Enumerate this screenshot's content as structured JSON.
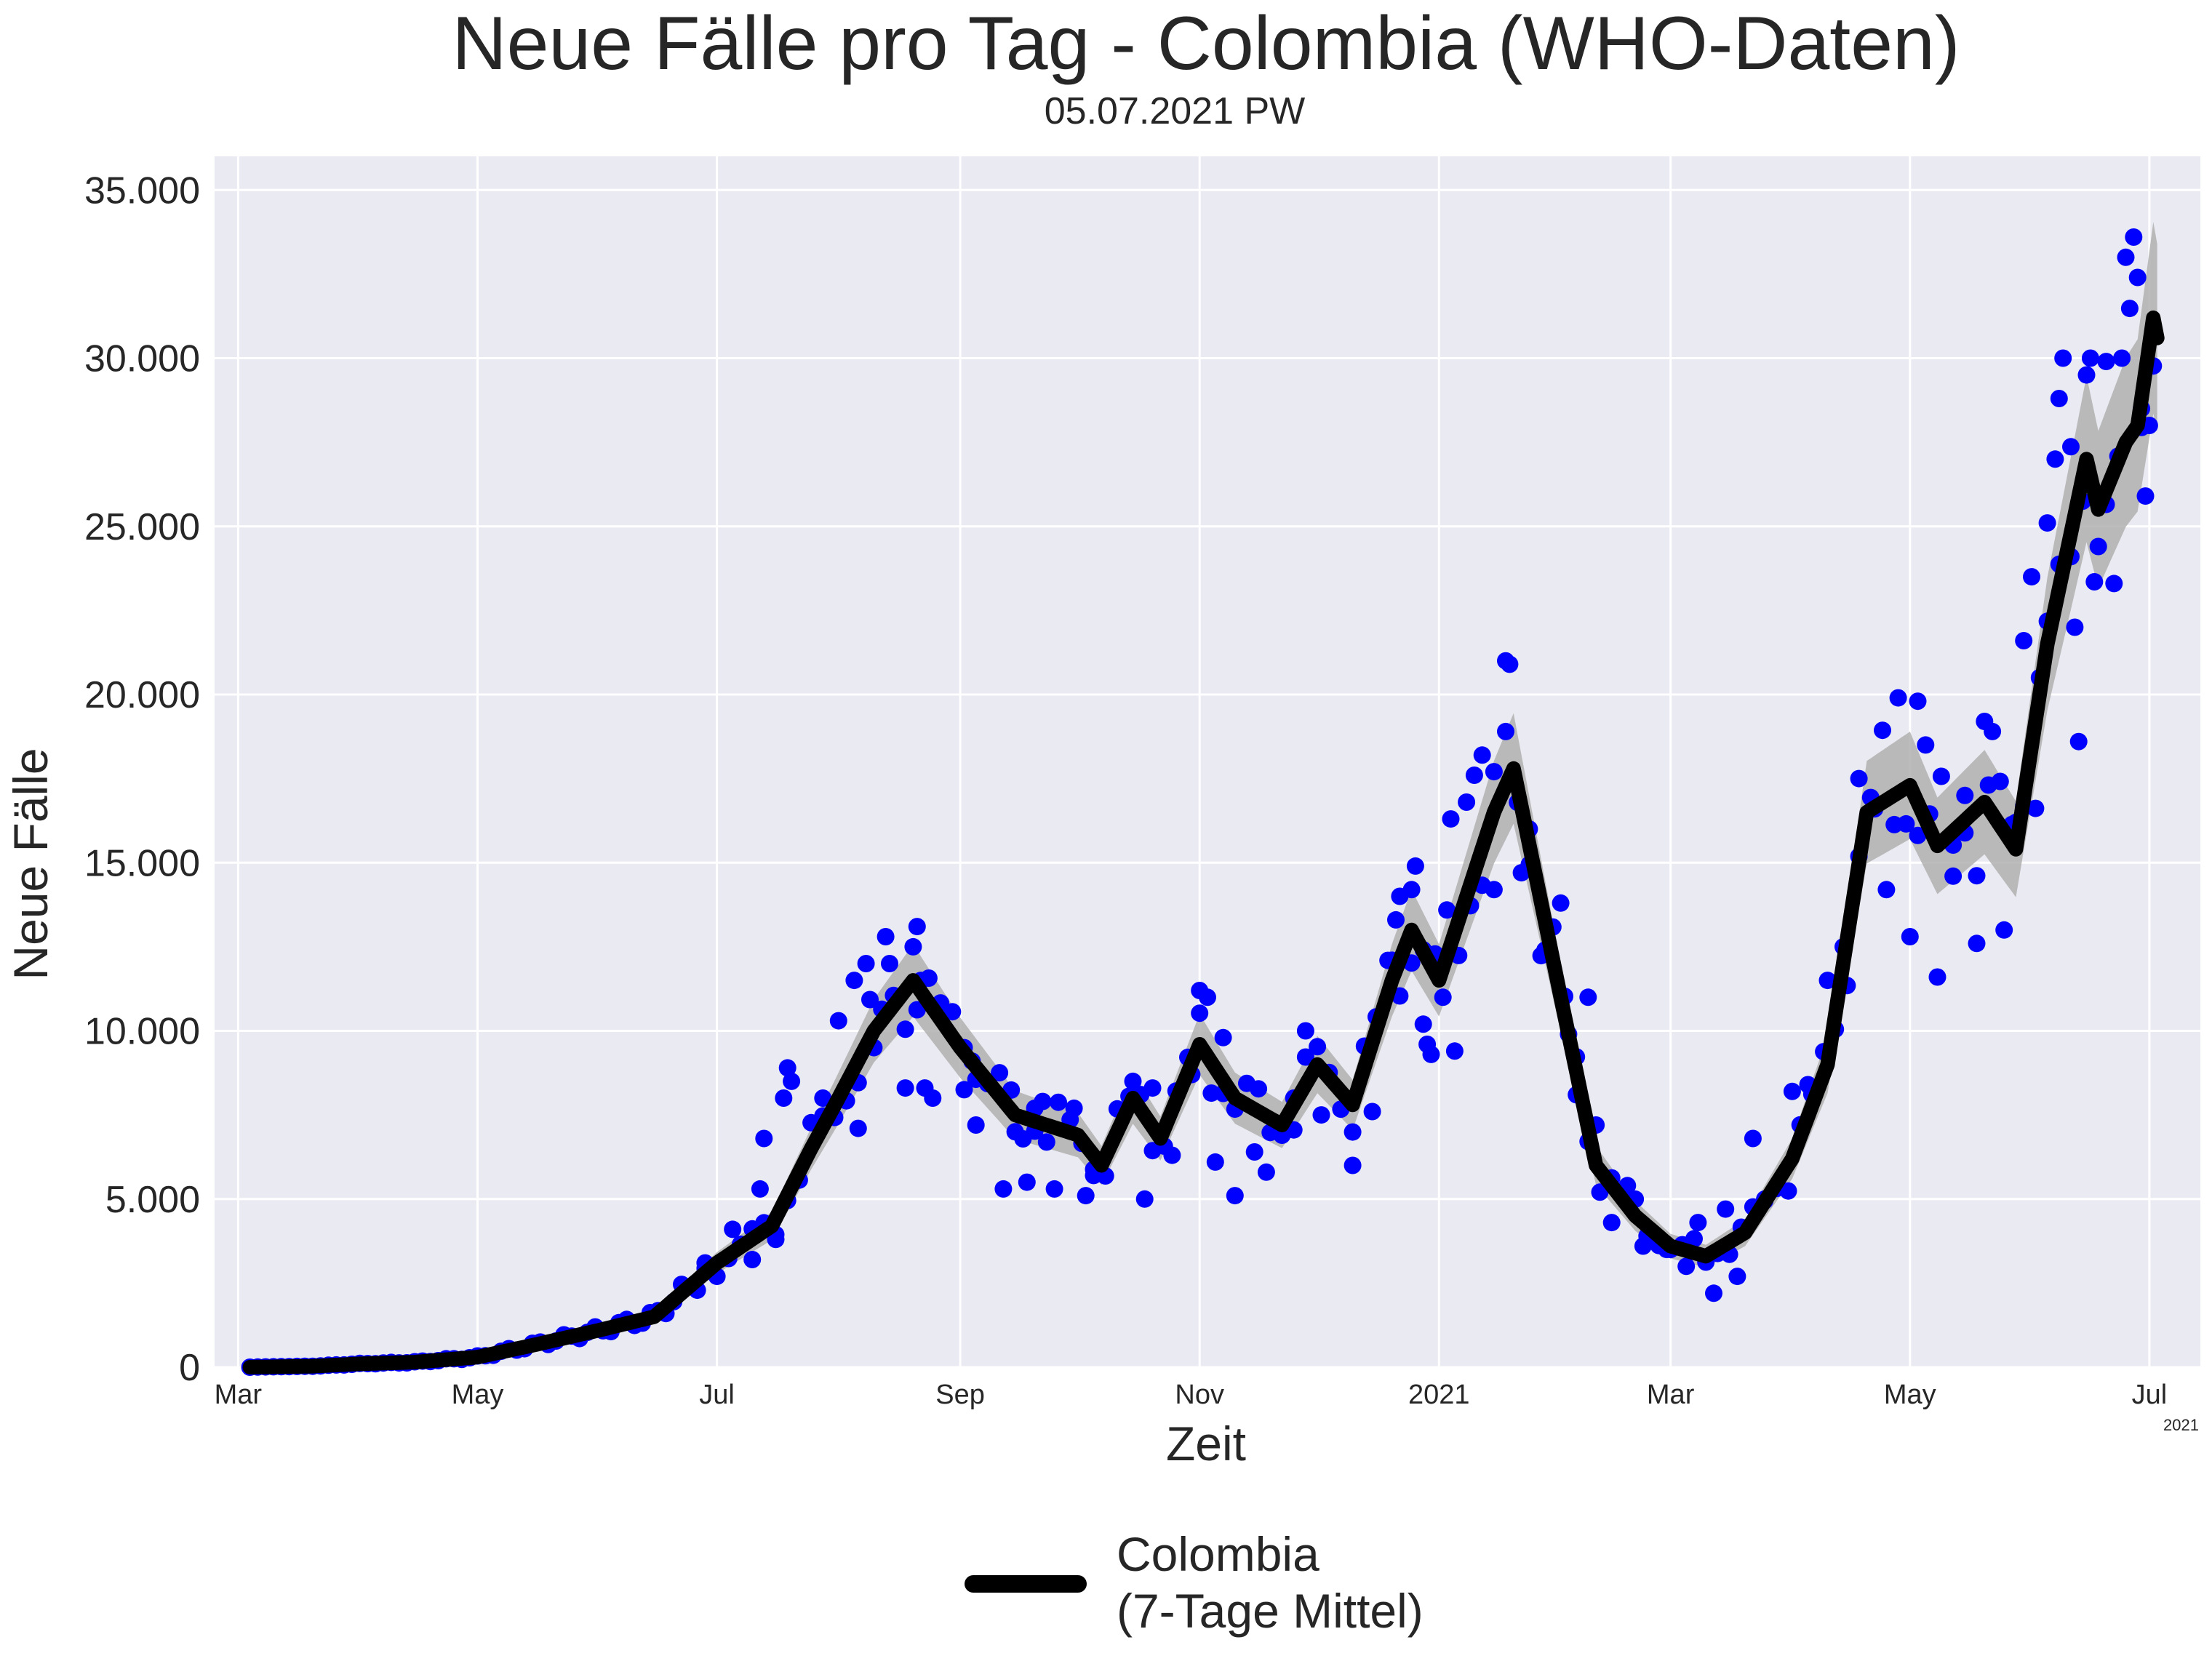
{
  "chart_data": {
    "type": "line",
    "title": "Neue Fälle pro Tag - Colombia (WHO-Daten)",
    "subtitle": "05.07.2021 PW",
    "xlabel": "Zeit",
    "ylabel": "Neue Fälle",
    "year_note": "2021",
    "ylim": [
      0,
      36000
    ],
    "xlim": [
      "2020-02-24",
      "2021-07-14"
    ],
    "yticks": [
      0,
      5000,
      10000,
      15000,
      20000,
      25000,
      30000,
      35000
    ],
    "ytick_labels": [
      "0",
      "5.000",
      "10.000",
      "15.000",
      "20.000",
      "25.000",
      "30.000",
      "35.000"
    ],
    "xticks": [
      "2020-03-01",
      "2020-05-01",
      "2020-07-01",
      "2020-09-01",
      "2020-11-01",
      "2021-01-01",
      "2021-03-01",
      "2021-05-01",
      "2021-07-01"
    ],
    "xtick_labels": [
      "Mar",
      "May",
      "Jul",
      "Sep",
      "Nov",
      "2021",
      "Mar",
      "May",
      "Jul"
    ],
    "grid": true,
    "legend_placement": "bottom-center",
    "colors": {
      "background": "#eaeaf2",
      "grid": "#ffffff",
      "points": "#0000ff",
      "line": "#000000",
      "band": "#b0b0b0"
    },
    "series": [
      {
        "name": "Colombia\n(7-Tage Mittel)",
        "kind": "line-with-band",
        "points": [
          [
            "2020-03-04",
            0
          ],
          [
            "2020-03-20",
            30
          ],
          [
            "2020-04-01",
            100
          ],
          [
            "2020-04-15",
            150
          ],
          [
            "2020-05-01",
            300
          ],
          [
            "2020-05-15",
            650
          ],
          [
            "2020-06-01",
            1100
          ],
          [
            "2020-06-15",
            1500
          ],
          [
            "2020-07-01",
            3100
          ],
          [
            "2020-07-15",
            4200
          ],
          [
            "2020-07-25",
            6500
          ],
          [
            "2020-08-01",
            8000
          ],
          [
            "2020-08-10",
            10000
          ],
          [
            "2020-08-20",
            11500
          ],
          [
            "2020-09-01",
            9500
          ],
          [
            "2020-09-15",
            7500
          ],
          [
            "2020-10-01",
            6900
          ],
          [
            "2020-10-07",
            6000
          ],
          [
            "2020-10-15",
            8000
          ],
          [
            "2020-10-22",
            6800
          ],
          [
            "2020-11-01",
            9600
          ],
          [
            "2020-11-10",
            8000
          ],
          [
            "2020-11-22",
            7200
          ],
          [
            "2020-12-01",
            9000
          ],
          [
            "2020-12-10",
            7800
          ],
          [
            "2020-12-20",
            11500
          ],
          [
            "2020-12-25",
            13000
          ],
          [
            "2021-01-01",
            11500
          ],
          [
            "2021-01-08",
            14000
          ],
          [
            "2021-01-15",
            16500
          ],
          [
            "2021-01-20",
            17800
          ],
          [
            "2021-02-01",
            11000
          ],
          [
            "2021-02-10",
            6000
          ],
          [
            "2021-02-20",
            4500
          ],
          [
            "2021-03-01",
            3600
          ],
          [
            "2021-03-10",
            3300
          ],
          [
            "2021-03-20",
            4000
          ],
          [
            "2021-04-01",
            6200
          ],
          [
            "2021-04-10",
            9000
          ],
          [
            "2021-04-20",
            16500
          ],
          [
            "2021-05-01",
            17300
          ],
          [
            "2021-05-08",
            15500
          ],
          [
            "2021-05-20",
            16800
          ],
          [
            "2021-05-28",
            15400
          ],
          [
            "2021-06-05",
            21500
          ],
          [
            "2021-06-15",
            27000
          ],
          [
            "2021-06-18",
            25500
          ],
          [
            "2021-06-25",
            27500
          ],
          [
            "2021-06-28",
            28000
          ],
          [
            "2021-07-02",
            31200
          ],
          [
            "2021-07-03",
            30600
          ]
        ]
      },
      {
        "name": "",
        "kind": "scatter",
        "points": [
          [
            "2020-06-28",
            3100
          ],
          [
            "2020-07-05",
            4100
          ],
          [
            "2020-07-10",
            3200
          ],
          [
            "2020-07-12",
            5300
          ],
          [
            "2020-07-13",
            6800
          ],
          [
            "2020-07-16",
            3800
          ],
          [
            "2020-07-18",
            8000
          ],
          [
            "2020-07-19",
            8900
          ],
          [
            "2020-07-20",
            8500
          ],
          [
            "2020-07-28",
            8000
          ],
          [
            "2020-08-01",
            10300
          ],
          [
            "2020-08-05",
            11500
          ],
          [
            "2020-08-06",
            7100
          ],
          [
            "2020-08-08",
            12000
          ],
          [
            "2020-08-10",
            9500
          ],
          [
            "2020-08-13",
            12800
          ],
          [
            "2020-08-14",
            12000
          ],
          [
            "2020-08-18",
            8300
          ],
          [
            "2020-08-20",
            12500
          ],
          [
            "2020-08-21",
            13100
          ],
          [
            "2020-08-22",
            11500
          ],
          [
            "2020-08-23",
            8300
          ],
          [
            "2020-08-25",
            8000
          ],
          [
            "2020-09-02",
            9500
          ],
          [
            "2020-09-04",
            9100
          ],
          [
            "2020-09-05",
            7200
          ],
          [
            "2020-09-12",
            5300
          ],
          [
            "2020-09-15",
            7000
          ],
          [
            "2020-09-18",
            5500
          ],
          [
            "2020-09-20",
            7700
          ],
          [
            "2020-09-22",
            7900
          ],
          [
            "2020-09-25",
            5300
          ],
          [
            "2020-09-30",
            7700
          ],
          [
            "2020-10-03",
            5100
          ],
          [
            "2020-10-05",
            5700
          ],
          [
            "2020-10-15",
            8500
          ],
          [
            "2020-10-18",
            5000
          ],
          [
            "2020-10-20",
            8300
          ],
          [
            "2020-10-25",
            6300
          ],
          [
            "2020-10-30",
            8700
          ],
          [
            "2020-11-01",
            11200
          ],
          [
            "2020-11-03",
            11000
          ],
          [
            "2020-11-05",
            6100
          ],
          [
            "2020-11-07",
            9800
          ],
          [
            "2020-11-10",
            5100
          ],
          [
            "2020-11-15",
            6400
          ],
          [
            "2020-11-18",
            5800
          ],
          [
            "2020-11-25",
            8000
          ],
          [
            "2020-11-28",
            10000
          ],
          [
            "2020-12-02",
            7500
          ],
          [
            "2020-12-10",
            6000
          ],
          [
            "2020-12-15",
            7600
          ],
          [
            "2020-12-20",
            12100
          ],
          [
            "2020-12-21",
            13300
          ],
          [
            "2020-12-22",
            14000
          ],
          [
            "2020-12-25",
            14200
          ],
          [
            "2020-12-26",
            14900
          ],
          [
            "2020-12-28",
            10200
          ],
          [
            "2020-12-29",
            9600
          ],
          [
            "2020-12-30",
            9300
          ],
          [
            "2021-01-02",
            11000
          ],
          [
            "2021-01-04",
            16300
          ],
          [
            "2021-01-05",
            9400
          ],
          [
            "2021-01-08",
            16800
          ],
          [
            "2021-01-10",
            17600
          ],
          [
            "2021-01-12",
            18200
          ],
          [
            "2021-01-15",
            14200
          ],
          [
            "2021-01-18",
            21000
          ],
          [
            "2021-01-19",
            20900
          ],
          [
            "2021-01-22",
            14700
          ],
          [
            "2021-01-24",
            16000
          ],
          [
            "2021-01-28",
            12400
          ],
          [
            "2021-02-01",
            13800
          ],
          [
            "2021-02-03",
            9900
          ],
          [
            "2021-02-05",
            8100
          ],
          [
            "2021-02-08",
            11000
          ],
          [
            "2021-02-10",
            7200
          ],
          [
            "2021-02-14",
            4300
          ],
          [
            "2021-02-18",
            5400
          ],
          [
            "2021-02-22",
            3600
          ],
          [
            "2021-02-28",
            3500
          ],
          [
            "2021-03-05",
            3000
          ],
          [
            "2021-03-08",
            4300
          ],
          [
            "2021-03-12",
            2200
          ],
          [
            "2021-03-15",
            4700
          ],
          [
            "2021-03-18",
            2700
          ],
          [
            "2021-03-22",
            6800
          ],
          [
            "2021-03-25",
            5000
          ],
          [
            "2021-04-01",
            8200
          ],
          [
            "2021-04-05",
            8400
          ],
          [
            "2021-04-10",
            11500
          ],
          [
            "2021-04-14",
            12500
          ],
          [
            "2021-04-18",
            17500
          ],
          [
            "2021-04-22",
            16600
          ],
          [
            "2021-04-25",
            14200
          ],
          [
            "2021-04-28",
            19900
          ],
          [
            "2021-05-01",
            12800
          ],
          [
            "2021-05-03",
            19800
          ],
          [
            "2021-05-05",
            18500
          ],
          [
            "2021-05-08",
            11600
          ],
          [
            "2021-05-12",
            14600
          ],
          [
            "2021-05-15",
            17000
          ],
          [
            "2021-05-18",
            12600
          ],
          [
            "2021-05-20",
            19200
          ],
          [
            "2021-05-22",
            18900
          ],
          [
            "2021-05-25",
            13000
          ],
          [
            "2021-05-28",
            16200
          ],
          [
            "2021-05-30",
            21600
          ],
          [
            "2021-06-01",
            23500
          ],
          [
            "2021-06-03",
            20500
          ],
          [
            "2021-06-05",
            25100
          ],
          [
            "2021-06-07",
            27000
          ],
          [
            "2021-06-08",
            28800
          ],
          [
            "2021-06-09",
            30000
          ],
          [
            "2021-06-11",
            24100
          ],
          [
            "2021-06-12",
            22000
          ],
          [
            "2021-06-13",
            18600
          ],
          [
            "2021-06-15",
            29500
          ],
          [
            "2021-06-16",
            30000
          ],
          [
            "2021-06-18",
            24400
          ],
          [
            "2021-06-20",
            29900
          ],
          [
            "2021-06-22",
            23300
          ],
          [
            "2021-06-24",
            30000
          ],
          [
            "2021-06-25",
            33000
          ],
          [
            "2021-06-27",
            33600
          ],
          [
            "2021-06-28",
            32400
          ],
          [
            "2021-06-29",
            28500
          ],
          [
            "2021-06-30",
            25900
          ],
          [
            "2021-07-01",
            28000
          ]
        ]
      }
    ]
  }
}
